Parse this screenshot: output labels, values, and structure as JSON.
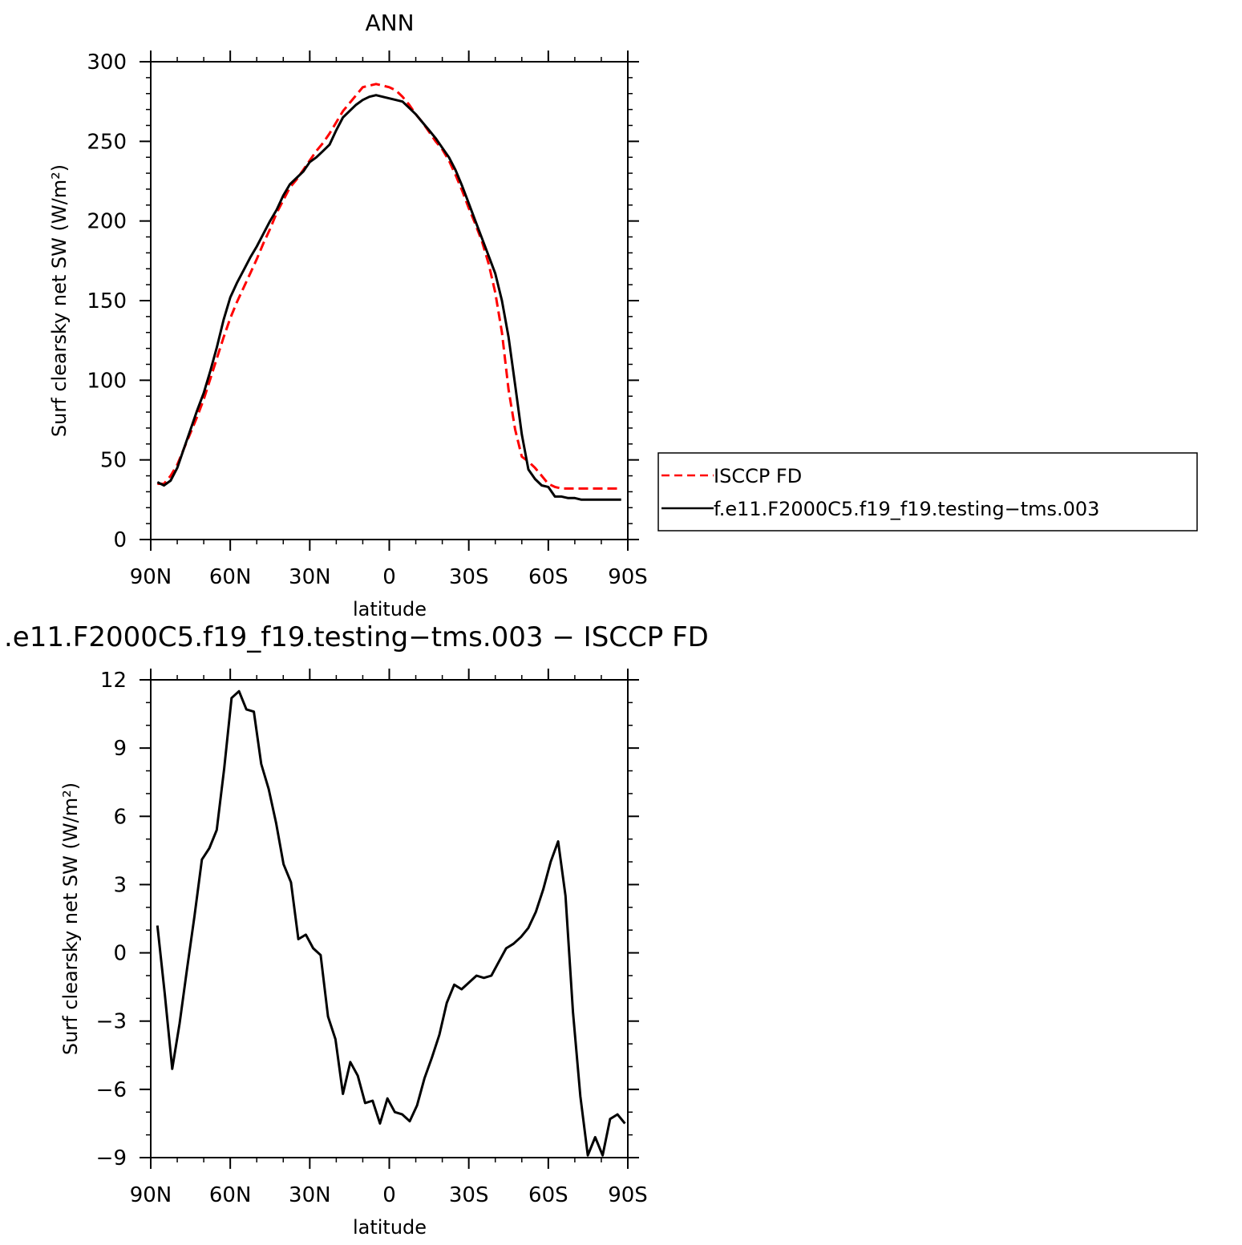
{
  "chart_data": [
    {
      "type": "line",
      "title": "ANN",
      "xlabel": "latitude",
      "ylabel": "Surf clearsky net SW (W/m²)",
      "xlim": [
        90,
        -90
      ],
      "ylim": [
        0,
        300
      ],
      "yticks": [
        0,
        50,
        100,
        150,
        200,
        250,
        300
      ],
      "xticks": [
        {
          "value": 90,
          "label": "90N"
        },
        {
          "value": 60,
          "label": "60N"
        },
        {
          "value": 30,
          "label": "30N"
        },
        {
          "value": 0,
          "label": "0"
        },
        {
          "value": -30,
          "label": "30S"
        },
        {
          "value": -60,
          "label": "60S"
        },
        {
          "value": -90,
          "label": "90S"
        }
      ],
      "grid": false,
      "legend": "right",
      "series": [
        {
          "name": "ISCCP FD",
          "color": "#ff0000",
          "dash": "dashed",
          "x": [
            87.5,
            85,
            82.5,
            80,
            77.5,
            75,
            72.5,
            70,
            67.5,
            65,
            62.5,
            60,
            57.5,
            55,
            52.5,
            50,
            47.5,
            45,
            42.5,
            40,
            37.5,
            35,
            32.5,
            30,
            27.5,
            25,
            22.5,
            20,
            17.5,
            15,
            12.5,
            10,
            7.5,
            5,
            2.5,
            0,
            -2.5,
            -5,
            -7.5,
            -10,
            -12.5,
            -15,
            -17.5,
            -20,
            -22.5,
            -25,
            -27.5,
            -30,
            -32.5,
            -35,
            -37.5,
            -40,
            -42.5,
            -45,
            -47.5,
            -50,
            -52.5,
            -55,
            -57.5,
            -60,
            -62.5,
            -65,
            -67.5,
            -70,
            -72.5,
            -75,
            -77.5,
            -80,
            -82.5,
            -85,
            -87.5
          ],
          "y": [
            35,
            35,
            40,
            47,
            57,
            67,
            77,
            88,
            101,
            114,
            127,
            139,
            149,
            158,
            167,
            176,
            186,
            195,
            205,
            213,
            221,
            226,
            232,
            238,
            244,
            249,
            255,
            262,
            269,
            274,
            279,
            284,
            285,
            286,
            285,
            284,
            282,
            278,
            273,
            267,
            262,
            256,
            250,
            245,
            238,
            229,
            219,
            208,
            198,
            187,
            173,
            155,
            130,
            94,
            69,
            52,
            49,
            45,
            40,
            35,
            33,
            32,
            32,
            32,
            32,
            32,
            32,
            32,
            32,
            32,
            32
          ]
        },
        {
          "name": "f.e11.F2000C5.f19_f19.testing−tms.003",
          "color": "#000000",
          "dash": "solid",
          "x": [
            87.5,
            85,
            82.5,
            80,
            77.5,
            75,
            72.5,
            70,
            67.5,
            65,
            62.5,
            60,
            57.5,
            55,
            52.5,
            50,
            47.5,
            45,
            42.5,
            40,
            37.5,
            35,
            32.5,
            30,
            27.5,
            25,
            22.5,
            20,
            17.5,
            15,
            12.5,
            10,
            7.5,
            5,
            2.5,
            0,
            -2.5,
            -5,
            -7.5,
            -10,
            -12.5,
            -15,
            -17.5,
            -20,
            -22.5,
            -25,
            -27.5,
            -30,
            -32.5,
            -35,
            -37.5,
            -40,
            -42.5,
            -45,
            -47.5,
            -50,
            -52.5,
            -55,
            -57.5,
            -60,
            -62.5,
            -65,
            -67.5,
            -70,
            -72.5,
            -75,
            -77.5,
            -80,
            -82.5,
            -85,
            -87.5
          ],
          "y": [
            36,
            34,
            37,
            45,
            57,
            69,
            81,
            92,
            106,
            121,
            138,
            152,
            161,
            169,
            177,
            184,
            192,
            200,
            207,
            216,
            223,
            227,
            231,
            237,
            240,
            244,
            248,
            257,
            265,
            269,
            273,
            276,
            278,
            279,
            278,
            277,
            276,
            275,
            271,
            267,
            262,
            257,
            252,
            246,
            240,
            232,
            222,
            211,
            200,
            189,
            178,
            167,
            150,
            127,
            97,
            66,
            44,
            38,
            34,
            33,
            27,
            27,
            26,
            26,
            25,
            25,
            25,
            25,
            25,
            25,
            25
          ]
        }
      ]
    },
    {
      "type": "line",
      "title": ".e11.F2000C5.f19_f19.testing−tms.003 − ISCCP FD",
      "xlabel": "latitude",
      "ylabel": "Surf clearsky net SW (W/m²)",
      "xlim": [
        90,
        -90
      ],
      "ylim": [
        -9,
        12
      ],
      "yticks": [
        -9,
        -6,
        -3,
        0,
        3,
        6,
        9,
        12
      ],
      "xticks": [
        {
          "value": 90,
          "label": "90N"
        },
        {
          "value": 60,
          "label": "60N"
        },
        {
          "value": 30,
          "label": "30N"
        },
        {
          "value": 0,
          "label": "0"
        },
        {
          "value": -30,
          "label": "30S"
        },
        {
          "value": -60,
          "label": "60S"
        },
        {
          "value": -90,
          "label": "90S"
        }
      ],
      "grid": false,
      "series": [
        {
          "color": "#000000",
          "dash": "solid",
          "x": [
            87.5,
            84.7,
            81.9,
            79.1,
            76.3,
            73.5,
            70.7,
            67.9,
            65.1,
            62.3,
            59.5,
            56.7,
            53.9,
            51.1,
            48.3,
            45.5,
            42.7,
            39.9,
            37.1,
            34.3,
            31.5,
            28.7,
            25.9,
            23.1,
            20.3,
            17.5,
            14.7,
            11.9,
            9.1,
            6.3,
            3.5,
            0.7,
            -2.1,
            -4.9,
            -7.7,
            -10.5,
            -13.3,
            -16.1,
            -18.9,
            -21.7,
            -24.5,
            -27.3,
            -30.1,
            -32.9,
            -35.7,
            -38.5,
            -41.3,
            -44.1,
            -46.9,
            -49.7,
            -52.5,
            -55.3,
            -58.1,
            -60.9,
            -63.7,
            -66.5,
            -69.3,
            -72.1,
            -74.9,
            -77.7,
            -80.5,
            -83.3,
            -86.1,
            -88.9
          ],
          "y": [
            1.2,
            -1.8,
            -5.1,
            -3.1,
            -0.7,
            1.6,
            4.1,
            4.6,
            5.4,
            8.1,
            11.2,
            11.5,
            10.7,
            10.6,
            8.3,
            7.2,
            5.7,
            3.9,
            3.1,
            0.6,
            0.8,
            0.2,
            -0.1,
            -2.8,
            -3.8,
            -6.2,
            -4.8,
            -5.4,
            -6.6,
            -6.5,
            -7.5,
            -6.4,
            -7.0,
            -7.1,
            -7.4,
            -6.7,
            -5.5,
            -4.6,
            -3.6,
            -2.2,
            -1.4,
            -1.6,
            -1.3,
            -1.0,
            -1.1,
            -1.0,
            -0.4,
            0.2,
            0.4,
            0.7,
            1.1,
            1.8,
            2.8,
            4.0,
            4.9,
            2.5,
            -2.6,
            -6.3,
            -8.9,
            -8.1,
            -8.9,
            -7.3,
            -7.1,
            -7.5
          ]
        }
      ]
    }
  ]
}
